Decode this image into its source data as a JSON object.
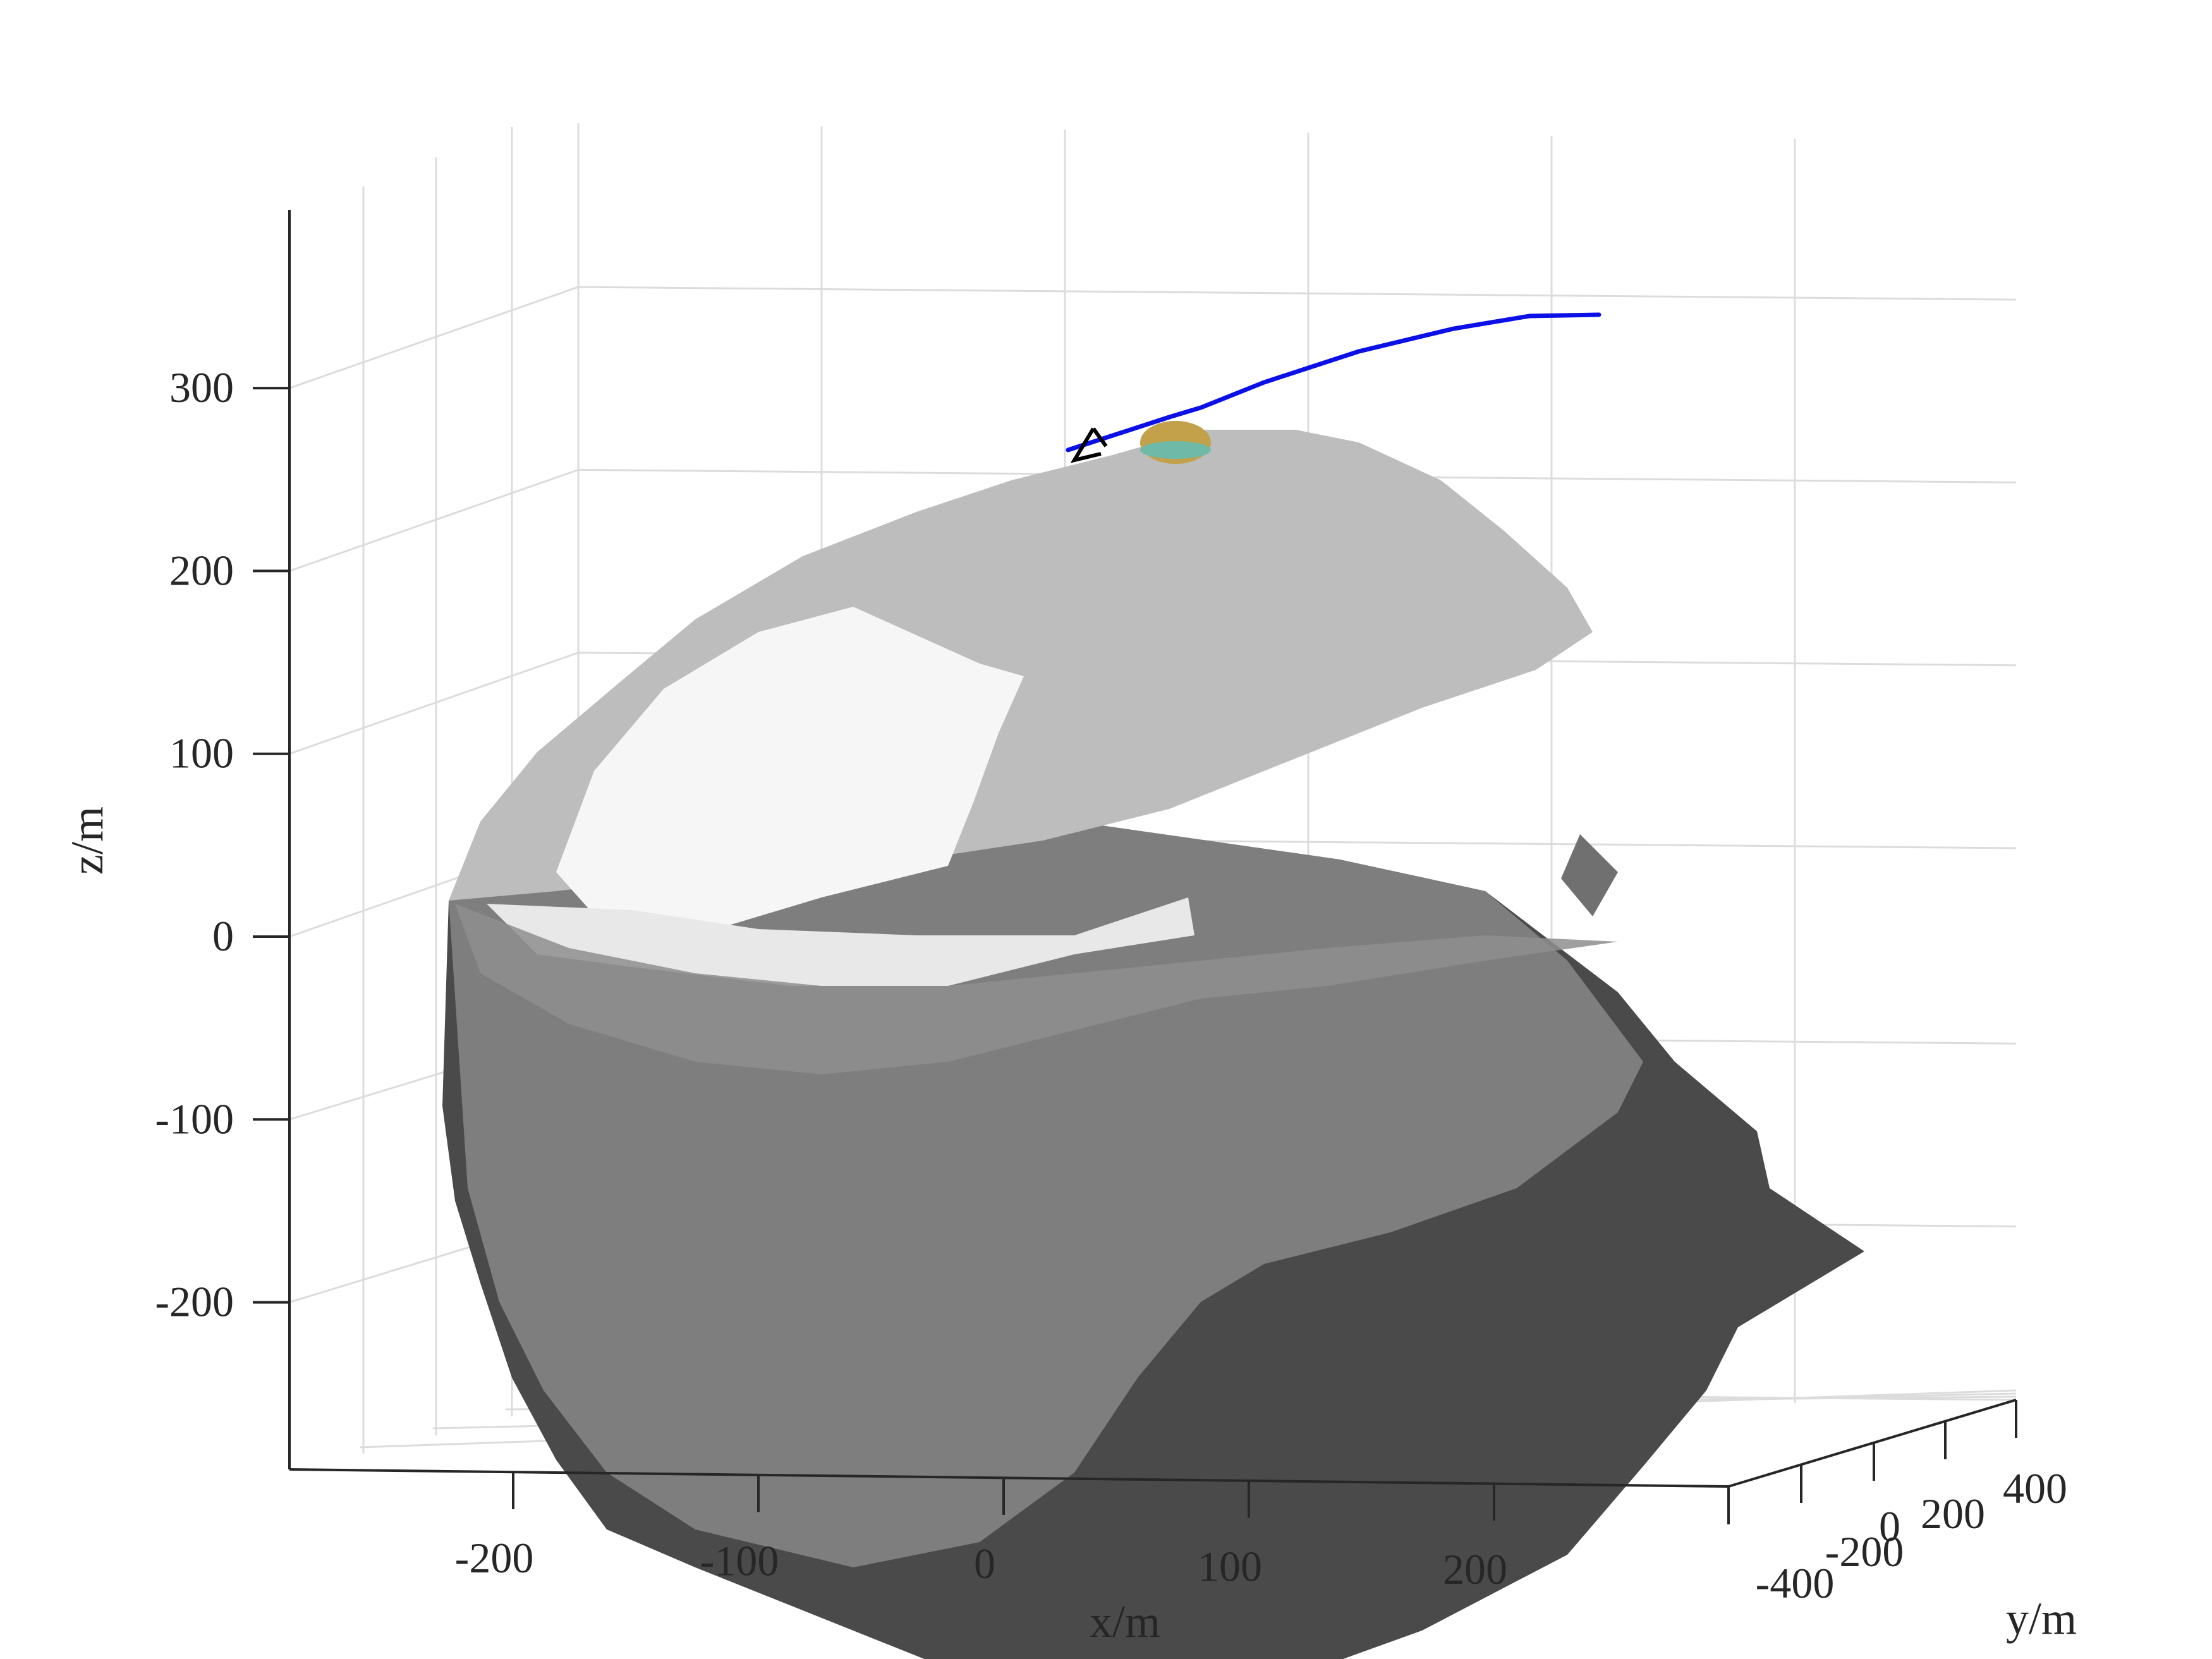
{
  "chart_data": {
    "type": "surface",
    "title": "",
    "xlabel": "x/m",
    "ylabel": "y/m",
    "zlabel": "z/m",
    "x_ticks": [
      "-200",
      "-100",
      "0",
      "100",
      "200"
    ],
    "y_ticks": [
      "-400",
      "-200",
      "0",
      "200",
      "400"
    ],
    "z_ticks": [
      "300",
      "200",
      "100",
      "0",
      "-100",
      "-200"
    ],
    "xlim": [
      -290,
      300
    ],
    "ylim": [
      -400,
      400
    ],
    "zlim": [
      -290,
      400
    ],
    "grid": true,
    "series": [
      {
        "kind": "mesh",
        "color_lit": "#f4f4f4",
        "color_mid": "#9a9a9a",
        "color_shadow": "#4a4a4a"
      },
      {
        "kind": "trajectory",
        "color": "#0a10e6",
        "x": [
          10,
          60,
          90,
          140,
          200,
          240
        ],
        "z": [
          268,
          285,
          305,
          330,
          342,
          340
        ]
      },
      {
        "kind": "marker-dome",
        "color": "#c2a14a",
        "x": [
          55
        ],
        "z": [
          270
        ]
      },
      {
        "kind": "arrow-marker",
        "color": "#000000",
        "x": [
          8
        ],
        "z": [
          268
        ]
      }
    ]
  }
}
